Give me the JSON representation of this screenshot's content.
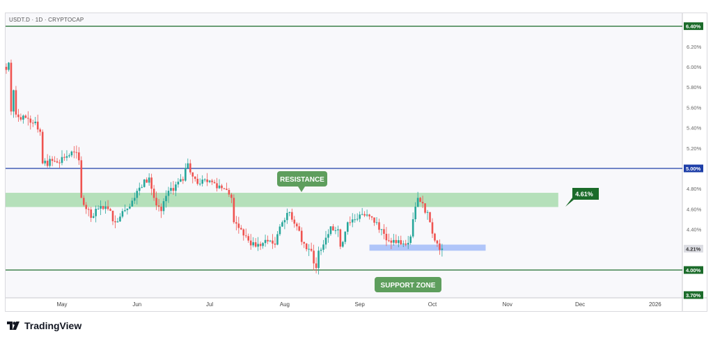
{
  "header": {
    "symbol": "USDT.D · 1D · CRYPTOCAP"
  },
  "brand": {
    "name": "TradingView"
  },
  "annotations": {
    "resistance": "RESISTANCE",
    "support": "SUPPORT ZONE",
    "resistance_value": "4.61%"
  },
  "colors": {
    "up": "#26a69a",
    "down": "#ef5350",
    "resistance_zone": "#a9dcae",
    "support_zone": "#a7bff8",
    "line_green": "#1b6b2a",
    "line_blue": "#1e3fa8",
    "label_green": "#5e9e5d"
  },
  "chart_data": {
    "type": "candlestick",
    "title": "USDT.D · 1D · CRYPTOCAP",
    "ylim": [
      3.7,
      6.5
    ],
    "y_ticks": [
      "6.20%",
      "6.00%",
      "5.80%",
      "5.60%",
      "5.40%",
      "5.20%",
      "4.80%",
      "4.60%",
      "4.40%"
    ],
    "y_tick_values": [
      6.2,
      6.0,
      5.8,
      5.6,
      5.4,
      5.2,
      4.8,
      4.6,
      4.4
    ],
    "x_ticks": [
      {
        "label": "May",
        "date": "2025-05-01"
      },
      {
        "label": "Jun",
        "date": "2025-06-01"
      },
      {
        "label": "Jul",
        "date": "2025-07-01"
      },
      {
        "label": "Aug",
        "date": "2025-08-01"
      },
      {
        "label": "Sep",
        "date": "2025-09-01"
      },
      {
        "label": "Oct",
        "date": "2025-10-01"
      },
      {
        "label": "Nov",
        "date": "2025-11-01"
      },
      {
        "label": "Dec",
        "date": "2025-12-01"
      },
      {
        "label": "2026",
        "date": "2026-01-01"
      }
    ],
    "x_range": [
      "2025-04-08",
      "2026-01-12"
    ],
    "price_labels": [
      {
        "label": "6.40%",
        "value": 6.4,
        "color": "#1b6b2a"
      },
      {
        "label": "5.00%",
        "value": 5.0,
        "color": "#1e3fa8"
      },
      {
        "label": "4.21%",
        "value": 4.21,
        "color": "#dcdde3"
      },
      {
        "label": "4.00%",
        "value": 4.0,
        "color": "#1b6b2a"
      },
      {
        "label": "3.70%",
        "value": 3.7,
        "color": "#1b6b2a"
      }
    ],
    "horizontal_lines": [
      {
        "value": 6.4,
        "color": "#1b6b2a"
      },
      {
        "value": 5.0,
        "color": "#1e3fa8"
      },
      {
        "value": 4.0,
        "color": "#1b6b2a"
      }
    ],
    "resistance_zone": {
      "low": 4.62,
      "high": 4.76,
      "end": "2025-11-22"
    },
    "support_zone": {
      "low": 4.19,
      "high": 4.25,
      "start": "2025-09-05",
      "end": "2025-10-23"
    },
    "closes": [
      [
        "2025-04-08",
        5.97
      ],
      [
        "2025-04-09",
        6.04
      ],
      [
        "2025-04-10",
        5.56
      ],
      [
        "2025-04-11",
        5.77
      ],
      [
        "2025-04-12",
        5.53
      ],
      [
        "2025-04-17",
        5.49
      ],
      [
        "2025-04-20",
        5.46
      ],
      [
        "2025-04-22",
        5.36
      ],
      [
        "2025-04-23",
        5.05
      ],
      [
        "2025-04-28",
        5.07
      ],
      [
        "2025-05-03",
        5.12
      ],
      [
        "2025-05-06",
        5.16
      ],
      [
        "2025-05-08",
        5.08
      ],
      [
        "2025-05-09",
        4.71
      ],
      [
        "2025-05-11",
        4.6
      ],
      [
        "2025-05-14",
        4.53
      ],
      [
        "2025-05-17",
        4.63
      ],
      [
        "2025-05-20",
        4.6
      ],
      [
        "2025-05-23",
        4.47
      ],
      [
        "2025-05-26",
        4.58
      ],
      [
        "2025-05-31",
        4.71
      ],
      [
        "2025-06-02",
        4.81
      ],
      [
        "2025-06-06",
        4.91
      ],
      [
        "2025-06-08",
        4.71
      ],
      [
        "2025-06-11",
        4.58
      ],
      [
        "2025-06-14",
        4.78
      ],
      [
        "2025-06-20",
        4.88
      ],
      [
        "2025-06-22",
        5.05
      ],
      [
        "2025-06-24",
        4.92
      ],
      [
        "2025-06-27",
        4.85
      ],
      [
        "2025-07-01",
        4.88
      ],
      [
        "2025-07-07",
        4.8
      ],
      [
        "2025-07-10",
        4.71
      ],
      [
        "2025-07-11",
        4.47
      ],
      [
        "2025-07-14",
        4.4
      ],
      [
        "2025-07-17",
        4.29
      ],
      [
        "2025-07-20",
        4.23
      ],
      [
        "2025-07-26",
        4.29
      ],
      [
        "2025-07-28",
        4.25
      ],
      [
        "2025-07-31",
        4.47
      ],
      [
        "2025-08-03",
        4.57
      ],
      [
        "2025-08-06",
        4.43
      ],
      [
        "2025-08-09",
        4.26
      ],
      [
        "2025-08-12",
        4.19
      ],
      [
        "2025-08-14",
        4.02
      ],
      [
        "2025-08-15",
        4.19
      ],
      [
        "2025-08-20",
        4.43
      ],
      [
        "2025-08-23",
        4.4
      ],
      [
        "2025-08-24",
        4.23
      ],
      [
        "2025-08-27",
        4.47
      ],
      [
        "2025-09-02",
        4.55
      ],
      [
        "2025-09-08",
        4.47
      ],
      [
        "2025-09-13",
        4.29
      ],
      [
        "2025-09-19",
        4.26
      ],
      [
        "2025-09-22",
        4.33
      ],
      [
        "2025-09-23",
        4.5
      ],
      [
        "2025-09-25",
        4.71
      ],
      [
        "2025-09-26",
        4.67
      ],
      [
        "2025-09-29",
        4.57
      ],
      [
        "2025-09-30",
        4.47
      ],
      [
        "2025-10-02",
        4.29
      ],
      [
        "2025-10-05",
        4.21
      ]
    ]
  }
}
